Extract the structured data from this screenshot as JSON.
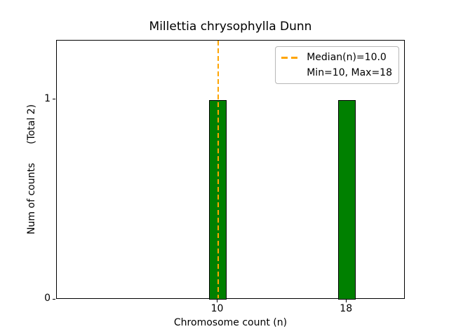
{
  "chart_data": {
    "type": "bar",
    "title": "Millettia chrysophylla Dunn",
    "xlabel": "Chromosome count (n)",
    "ylabel": "Num of counts      (Total 2)",
    "x": [
      10,
      18
    ],
    "values": [
      1,
      1
    ],
    "total_counts": 2,
    "xtick_labels": [
      "10",
      "18"
    ],
    "ytick_labels": [
      "0",
      "1"
    ],
    "yticks": [
      0,
      1
    ],
    "xlim": [
      0,
      21.65
    ],
    "ylim": [
      0,
      1.298
    ],
    "grid": false,
    "bar_color": "#008000",
    "bar_edge_color": "#000000",
    "median_line": {
      "value": 10.0,
      "color": "#FFA500",
      "style": "dashed"
    },
    "legend": {
      "position": "upper right",
      "entries": [
        {
          "label": "Median(n)=10.0",
          "marker": "orange-dashed-line"
        },
        {
          "label": "Min=10, Max=18",
          "marker": "none"
        }
      ]
    }
  }
}
